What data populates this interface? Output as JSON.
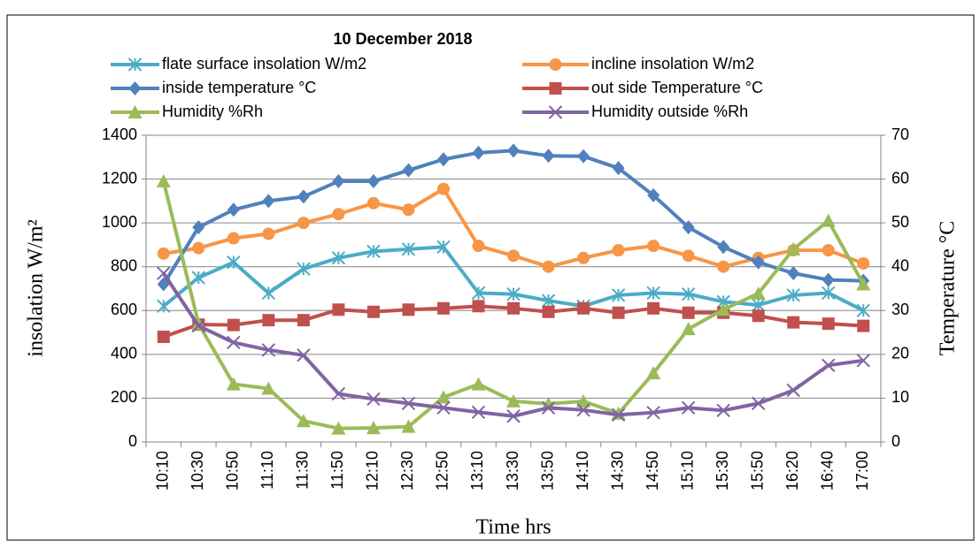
{
  "chart_data": {
    "type": "line",
    "title": "10 December 2018",
    "x_label": "Time hrs",
    "y_label": "insolation W/m²",
    "y2_label": "Temperature °C",
    "categories": [
      "10:10",
      "10:30",
      "10:50",
      "11:10",
      "11:30",
      "11:50",
      "12:10",
      "12:30",
      "12:50",
      "13:10",
      "13:30",
      "13:50",
      "14:10",
      "14:30",
      "14:50",
      "15:10",
      "15:30",
      "15:50",
      "16:20",
      "16:40",
      "17:00"
    ],
    "ylim": [
      0,
      1400
    ],
    "yticks": [
      0,
      200,
      400,
      600,
      800,
      1000,
      1200,
      1400
    ],
    "y2lim": [
      0,
      70
    ],
    "y2ticks": [
      0,
      10,
      20,
      30,
      40,
      50,
      60,
      70
    ],
    "grid": true,
    "legend": "top",
    "series": [
      {
        "name": "flate surface insolation W/m2",
        "color": "#4bacc6",
        "marker": "asterisk",
        "values": [
          620,
          750,
          820,
          680,
          790,
          840,
          870,
          880,
          890,
          680,
          675,
          645,
          620,
          670,
          680,
          675,
          640,
          625,
          670,
          680,
          600
        ]
      },
      {
        "name": "incline insolation  W/m2",
        "color": "#f79646",
        "marker": "circle",
        "values": [
          860,
          885,
          930,
          950,
          1000,
          1040,
          1090,
          1060,
          1155,
          895,
          850,
          800,
          840,
          875,
          895,
          850,
          800,
          840,
          875,
          875,
          815
        ]
      },
      {
        "name": "inside temperature °C",
        "color": "#4f81bd",
        "marker": "diamond",
        "axis": "y2",
        "values": [
          36,
          49,
          53,
          55,
          56,
          59.5,
          59.5,
          62,
          64.5,
          66,
          66.5,
          65.3,
          65.2,
          62.5,
          56.3,
          49,
          44.5,
          41,
          38.5,
          37,
          36.8
        ]
      },
      {
        "name": "out side Temperature  °C",
        "color": "#c0504d",
        "marker": "square",
        "axis": "y2",
        "values": [
          24,
          26.8,
          26.7,
          27.8,
          27.8,
          30.2,
          29.7,
          30.2,
          30.5,
          31,
          30.5,
          29.7,
          30.5,
          29.5,
          30.5,
          29.5,
          29.5,
          28.8,
          27.3,
          27,
          26.5
        ]
      },
      {
        "name": "Humidity  %Rh",
        "color": "#9bbb59",
        "marker": "triangle",
        "axis": "y2",
        "values": [
          59.5,
          27,
          13.2,
          12.2,
          4.8,
          3.1,
          3.2,
          3.5,
          10.2,
          13.2,
          9.3,
          8.7,
          9.3,
          6.5,
          15.7,
          25.8,
          30.2,
          33.9,
          44,
          50.5,
          36
        ]
      },
      {
        "name": "Humidity outside %Rh",
        "color": "#8064a2",
        "marker": "x",
        "axis": "y2",
        "values": [
          38.5,
          26.5,
          22.7,
          21,
          19.8,
          11,
          9.8,
          8.8,
          7.8,
          6.8,
          5.9,
          7.8,
          7.3,
          6.2,
          6.7,
          7.8,
          7.2,
          8.8,
          11.8,
          17.5,
          18.6
        ]
      }
    ]
  }
}
